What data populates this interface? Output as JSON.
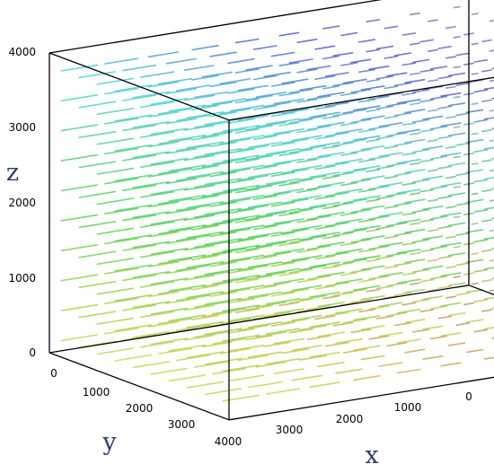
{
  "chart_data": {
    "type": "vector-field-3d",
    "title": "",
    "axes": {
      "x": {
        "label": "x",
        "range": [
          0,
          4000
        ],
        "ticks": [
          "0",
          "1000",
          "2000",
          "3000"
        ]
      },
      "y": {
        "label": "y",
        "range": [
          0,
          4000
        ],
        "ticks": [
          "0",
          "1000",
          "2000",
          "3000",
          "4000"
        ]
      },
      "z": {
        "label": "z",
        "range": [
          0,
          4000
        ],
        "ticks": [
          "0",
          "1000",
          "2000",
          "3000",
          "4000"
        ]
      }
    },
    "box": true,
    "grid": false,
    "legend": "none",
    "field": {
      "grid_points_per_axis": 10,
      "arrow_direction": "+x",
      "coloring": "hue by position",
      "magnitude_note": "arrow length grows toward larger x"
    },
    "colors": {
      "box_line": "#000000",
      "axis_label": "#2b3d6e",
      "magenta": "#c040c8",
      "cyan": "#30d0c0",
      "navy": "#283a8e",
      "red": "#c83850",
      "yellow_green": "#c8d040"
    }
  }
}
